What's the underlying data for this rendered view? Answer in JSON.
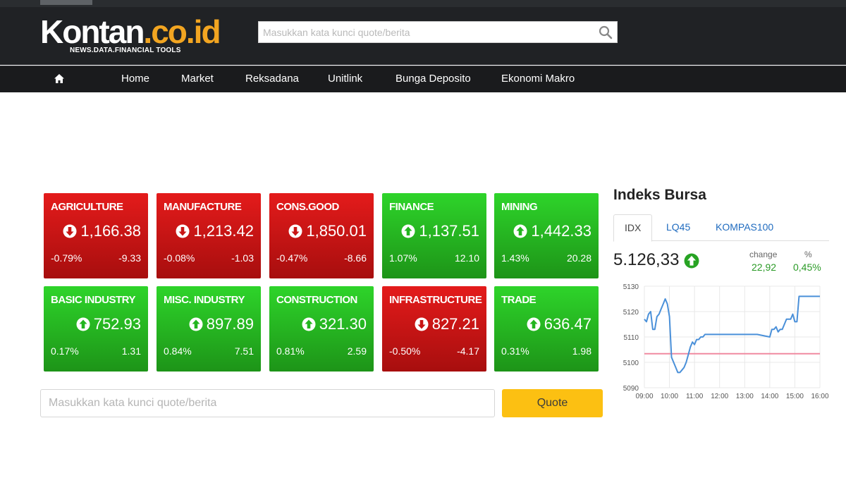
{
  "site": {
    "logo_part1": "Kontan",
    "logo_part2": ".co.id",
    "tagline": "NEWS.DATA.FINANCIAL TOOLS"
  },
  "header": {
    "search_placeholder": "Masukkan kata kunci quote/berita"
  },
  "nav": {
    "items": [
      "Home",
      "Market",
      "Reksadana",
      "Unitlink",
      "Bunga Deposito",
      "Ekonomi Makro"
    ]
  },
  "sectors": [
    {
      "name": "AGRICULTURE",
      "value": "1,166.38",
      "pct": "-0.79%",
      "change": "-9.33",
      "dir": "down"
    },
    {
      "name": "MANUFACTURE",
      "value": "1,213.42",
      "pct": "-0.08%",
      "change": "-1.03",
      "dir": "down"
    },
    {
      "name": "CONS.GOOD",
      "value": "1,850.01",
      "pct": "-0.47%",
      "change": "-8.66",
      "dir": "down"
    },
    {
      "name": "FINANCE",
      "value": "1,137.51",
      "pct": "1.07%",
      "change": "12.10",
      "dir": "up"
    },
    {
      "name": "MINING",
      "value": "1,442.33",
      "pct": "1.43%",
      "change": "20.28",
      "dir": "up"
    },
    {
      "name": "BASIC INDUSTRY",
      "value": "752.93",
      "pct": "0.17%",
      "change": "1.31",
      "dir": "up"
    },
    {
      "name": "MISC. INDUSTRY",
      "value": "897.89",
      "pct": "0.84%",
      "change": "7.51",
      "dir": "up"
    },
    {
      "name": "CONSTRUCTION",
      "value": "321.30",
      "pct": "0.81%",
      "change": "2.59",
      "dir": "up"
    },
    {
      "name": "INFRASTRUCTURE",
      "value": "827.21",
      "pct": "-0.50%",
      "change": "-4.17",
      "dir": "down"
    },
    {
      "name": "TRADE",
      "value": "636.47",
      "pct": "0.31%",
      "change": "1.98",
      "dir": "up"
    }
  ],
  "quote": {
    "placeholder": "Masukkan kata kunci quote/berita",
    "button_label": "Quote"
  },
  "colors": {
    "up": "#22b51e",
    "down": "#c81414",
    "accent": "#fcc012",
    "link": "#1f6bbf"
  },
  "index": {
    "title": "Indeks Bursa",
    "tabs": [
      "IDX",
      "LQ45",
      "KOMPAS100"
    ],
    "active_tab": "IDX",
    "value": "5.126,33",
    "change_label": "change",
    "pct_label": "%",
    "change": "22,92",
    "pct": "0,45%"
  },
  "chart_data": {
    "type": "line",
    "x_ticks": [
      "09:00",
      "10:00",
      "11:00",
      "12:00",
      "13:00",
      "14:00",
      "15:00",
      "16:00"
    ],
    "y_ticks": [
      "5130",
      "5120",
      "5110",
      "5100",
      "5090"
    ],
    "ylim": [
      5090,
      5130
    ],
    "grid": true,
    "reference_value": 5103.4,
    "series": [
      {
        "x": [
          "09:00",
          "09:05",
          "09:10",
          "09:15",
          "09:20",
          "09:25",
          "09:30",
          "09:35",
          "09:40",
          "09:45",
          "09:50",
          "09:55",
          "10:00",
          "10:05",
          "10:10",
          "10:15",
          "10:20",
          "10:25",
          "10:30",
          "10:35",
          "10:40",
          "10:45",
          "10:50",
          "10:55",
          "11:00",
          "11:05",
          "11:10",
          "11:15",
          "11:20",
          "11:25",
          "11:30",
          "11:40",
          "12:00",
          "12:30",
          "13:00",
          "13:30",
          "14:00",
          "14:05",
          "14:10",
          "14:15",
          "14:20",
          "14:25",
          "14:30",
          "14:35",
          "14:40",
          "14:45",
          "14:50",
          "14:55",
          "15:00",
          "15:05",
          "15:10",
          "15:30",
          "16:00"
        ],
        "values": [
          5117,
          5116,
          5119,
          5120,
          5113,
          5113,
          5118,
          5119,
          5121,
          5123,
          5125,
          5123,
          5118,
          5102,
          5100,
          5098,
          5096,
          5096,
          5097,
          5098,
          5100,
          5103,
          5106,
          5108,
          5107,
          5109,
          5109,
          5110,
          5110,
          5111,
          5111,
          5111,
          5111,
          5111,
          5111,
          5111,
          5110,
          5113,
          5113,
          5114,
          5112,
          5113,
          5113,
          5115,
          5117,
          5117,
          5117,
          5119,
          5116,
          5116,
          5126,
          5126,
          5126
        ]
      }
    ]
  }
}
